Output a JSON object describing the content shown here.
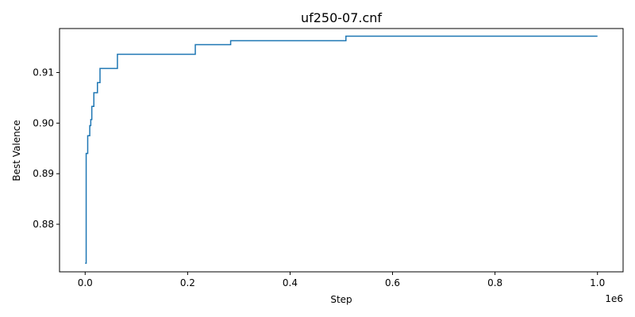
{
  "chart_data": {
    "type": "line",
    "title": "uf250-07.cnf",
    "xlabel": "Step",
    "ylabel": "Best Valence",
    "x_offset_label": "1e6",
    "xlim": [
      -0.05,
      1.05
    ],
    "ylim": [
      0.8706,
      0.9187
    ],
    "x_ticks": [
      0.0,
      0.2,
      0.4,
      0.6,
      0.8,
      1.0
    ],
    "x_tick_labels": [
      "0.0",
      "0.2",
      "0.4",
      "0.6",
      "0.8",
      "1.0"
    ],
    "y_ticks": [
      0.88,
      0.89,
      0.9,
      0.91
    ],
    "y_tick_labels": [
      "0.88",
      "0.89",
      "0.90",
      "0.91"
    ],
    "grid": false,
    "line_color": "#1f77b4",
    "step": true,
    "series": [
      {
        "x": [
          0.0,
          0.002,
          0.005,
          0.009,
          0.011,
          0.013,
          0.017,
          0.024,
          0.029,
          0.063,
          0.215,
          0.284,
          0.509,
          1.0
        ],
        "y": [
          0.8723,
          0.894,
          0.8975,
          0.8995,
          0.9007,
          0.9033,
          0.906,
          0.908,
          0.9108,
          0.9136,
          0.9155,
          0.9163,
          0.9172,
          0.9172
        ]
      }
    ]
  }
}
